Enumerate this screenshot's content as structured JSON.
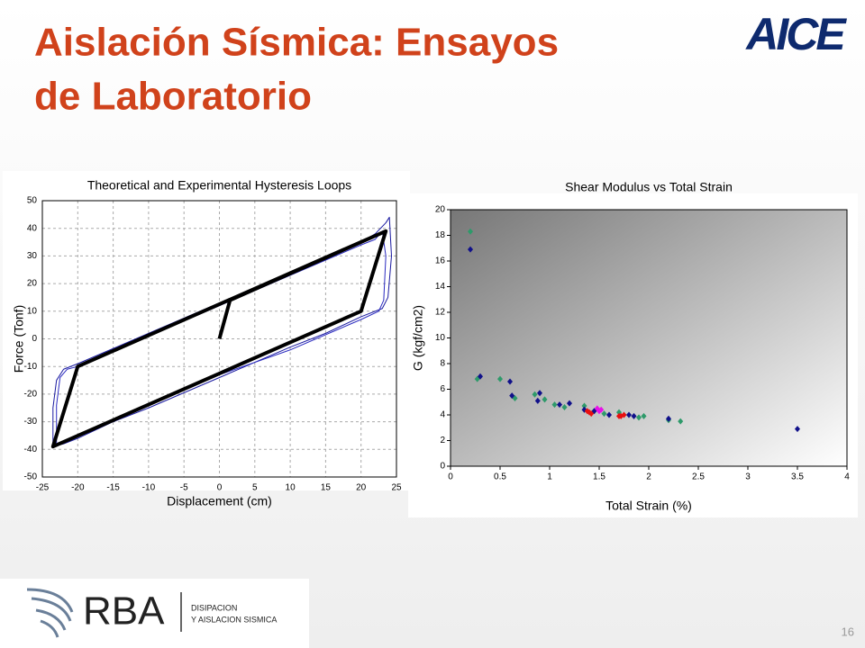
{
  "header": {
    "title_lines": [
      "Aislación Sísmica: Ensayos",
      "de Laboratorio"
    ],
    "logo": "AICE"
  },
  "footer": {
    "brand": "RBA",
    "tagline_lines": [
      "DISIPACION",
      "Y AISLACION SISMICA"
    ],
    "page": "16"
  },
  "chart_data": [
    {
      "type": "line",
      "title": "Theoretical and Experimental Hysteresis Loops",
      "x_label": "Displacement (cm)",
      "y_label": "Force (Tonf)",
      "xlim": [
        -25,
        25
      ],
      "xticks": [
        -25,
        -20,
        -15,
        -10,
        -5,
        0,
        5,
        10,
        15,
        20,
        25
      ],
      "ylim": [
        -50,
        50
      ],
      "yticks": [
        -50,
        -40,
        -30,
        -20,
        -10,
        0,
        10,
        20,
        30,
        40,
        50
      ],
      "grid": true,
      "series": [
        {
          "color": "#1a1aa0",
          "width": 1,
          "x": [
            -23.5,
            -23.5,
            -23,
            -22,
            -20,
            -15,
            -10,
            -5,
            0,
            5,
            10,
            15,
            20,
            22,
            23.5,
            24,
            24.3,
            23.8,
            23,
            20,
            15,
            10,
            5,
            0,
            -5,
            -10,
            -15,
            -20,
            -22,
            -23.5
          ],
          "values": [
            -39,
            -25,
            -15,
            -11,
            -9,
            -3.5,
            2,
            7.5,
            13,
            18.5,
            24,
            29.5,
            35,
            38,
            42,
            44,
            30,
            15,
            11,
            8,
            2,
            -3,
            -8.5,
            -14,
            -19.5,
            -25,
            -30,
            -36,
            -38,
            -39
          ]
        },
        {
          "color": "#2a2ac0",
          "width": 1,
          "x": [
            -23,
            -23,
            -22.5,
            -21.5,
            -20,
            -10,
            0,
            10,
            20,
            22,
            23,
            23.5,
            23.2,
            22.5,
            20,
            10,
            0,
            -10,
            -20,
            -22,
            -23
          ],
          "values": [
            -38,
            -24,
            -14,
            -11,
            -10,
            1,
            12,
            23,
            34,
            36,
            39,
            30,
            14,
            10,
            7,
            -4,
            -13,
            -24,
            -35,
            -37,
            -38
          ]
        },
        {
          "color": "#000000",
          "width": 4,
          "x": [
            0,
            1.5,
            23.5,
            20,
            -23.5,
            -20,
            23.5
          ],
          "values": [
            0,
            14,
            39,
            10,
            -39,
            -10,
            39
          ]
        }
      ]
    },
    {
      "type": "scatter",
      "title": "Shear Modulus vs Total Strain",
      "x_label": "Total Strain (%)",
      "y_label": "G (kgf/cm2)",
      "xlim": [
        0,
        4
      ],
      "xticks": [
        0,
        0.5,
        1,
        1.5,
        2,
        2.5,
        3,
        3.5,
        4
      ],
      "ylim": [
        0,
        20
      ],
      "yticks": [
        0,
        2,
        4,
        6,
        8,
        10,
        12,
        14,
        16,
        18,
        20
      ],
      "grid": false,
      "series": [
        {
          "color": "#2e9a6a",
          "x": [
            0.2,
            0.27,
            0.5,
            0.65,
            0.85,
            0.95,
            1.05,
            1.15,
            1.35,
            1.55,
            1.7,
            1.9,
            1.95,
            2.2,
            2.32
          ],
          "values": [
            18.3,
            6.8,
            6.8,
            5.3,
            5.6,
            5.2,
            4.8,
            4.6,
            4.7,
            4.1,
            4.2,
            3.8,
            3.9,
            3.6,
            3.5
          ]
        },
        {
          "color": "#10108a",
          "x": [
            0.2,
            0.3,
            0.6,
            0.62,
            0.88,
            0.9,
            1.1,
            1.2,
            1.35,
            1.45,
            1.6,
            1.8,
            1.85,
            2.2,
            3.5
          ],
          "values": [
            16.9,
            7,
            6.6,
            5.5,
            5.1,
            5.7,
            4.8,
            4.9,
            4.4,
            4.3,
            4,
            4,
            3.9,
            3.7,
            2.9
          ]
        },
        {
          "color": "#e81010",
          "x": [
            1.38,
            1.4,
            1.42,
            1.7,
            1.72,
            1.75
          ],
          "values": [
            4.3,
            4.2,
            4.1,
            3.9,
            3.9,
            4
          ]
        },
        {
          "color": "#e810e8",
          "x": [
            1.48,
            1.5,
            1.52
          ],
          "values": [
            4.5,
            4.3,
            4.4
          ]
        }
      ]
    }
  ]
}
